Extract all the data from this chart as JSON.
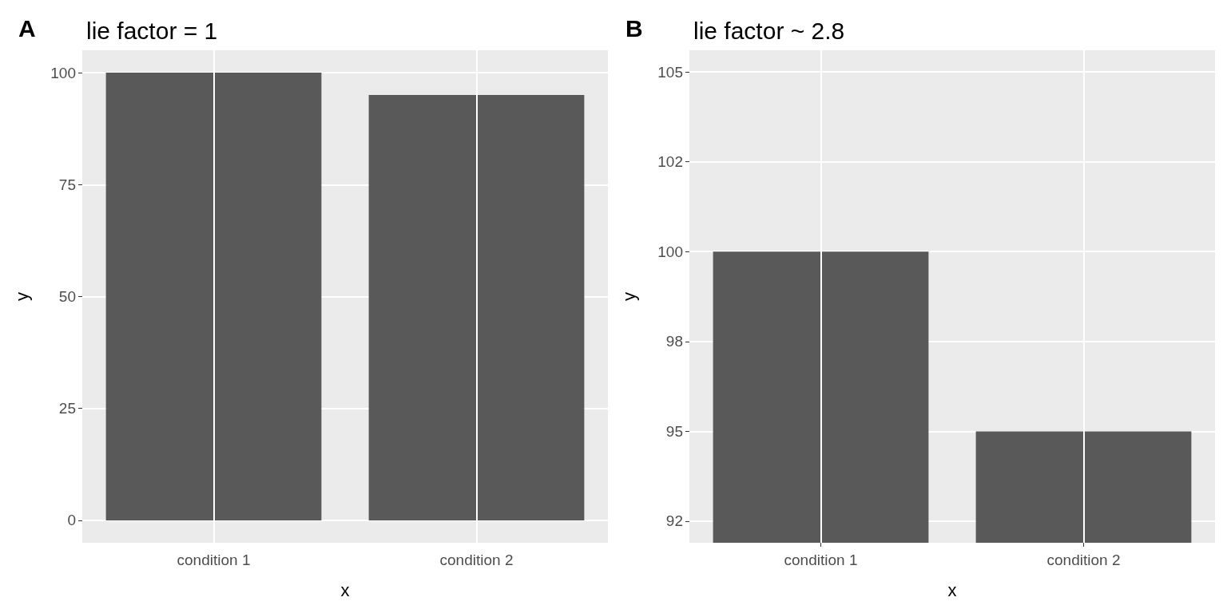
{
  "chart_data": [
    {
      "type": "bar",
      "title": "lie factor = 1",
      "annotations": [
        "A"
      ],
      "xlabel": "x",
      "ylabel": "y",
      "categories": [
        "condition 1",
        "condition 2"
      ],
      "values": [
        100,
        95
      ],
      "color": "#595959",
      "ylim": [
        -5,
        105
      ],
      "yticks": [
        0,
        25,
        50,
        75,
        100
      ],
      "grid": true
    },
    {
      "type": "bar",
      "title": "lie factor ~ 2.8",
      "annotations": [
        "B"
      ],
      "xlabel": "x",
      "ylabel": "y",
      "categories": [
        "condition 1",
        "condition 2"
      ],
      "values": [
        100,
        95
      ],
      "color": "#595959",
      "ylim": [
        91.9,
        105.6
      ],
      "yticks": [
        {
          "value": 92.5,
          "label": "92"
        },
        95,
        {
          "value": 97.5,
          "label": "98"
        },
        100,
        {
          "value": 102.5,
          "label": "102"
        },
        105
      ],
      "grid": true
    }
  ]
}
